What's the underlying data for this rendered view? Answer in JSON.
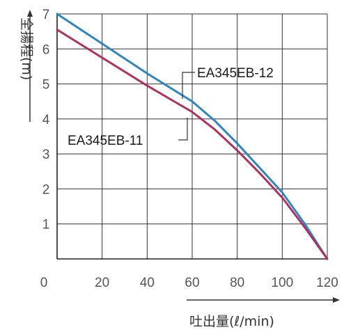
{
  "chart_data": {
    "type": "line",
    "xlabel": "吐出量(ℓ/min)",
    "ylabel": "全揚程(m)",
    "xlim": [
      0,
      120
    ],
    "ylim": [
      0,
      7
    ],
    "xticks": [
      "0",
      "20",
      "40",
      "60",
      "80",
      "100",
      "120"
    ],
    "yticks": [
      "1",
      "2",
      "3",
      "4",
      "5",
      "6",
      "7"
    ],
    "grid": true,
    "series": [
      {
        "name": "EA345EB-12",
        "color": "#2e86c1",
        "x": [
          0,
          20,
          40,
          60,
          70,
          80,
          90,
          100,
          110,
          120
        ],
        "y": [
          7.0,
          6.15,
          5.3,
          4.5,
          3.95,
          3.3,
          2.6,
          1.9,
          1.0,
          0.0
        ]
      },
      {
        "name": "EA345EB-11",
        "color": "#b03060",
        "x": [
          0,
          20,
          40,
          60,
          70,
          80,
          90,
          100,
          110,
          120
        ],
        "y": [
          6.55,
          5.75,
          4.95,
          4.2,
          3.7,
          3.1,
          2.45,
          1.75,
          0.9,
          0.0
        ]
      }
    ]
  }
}
